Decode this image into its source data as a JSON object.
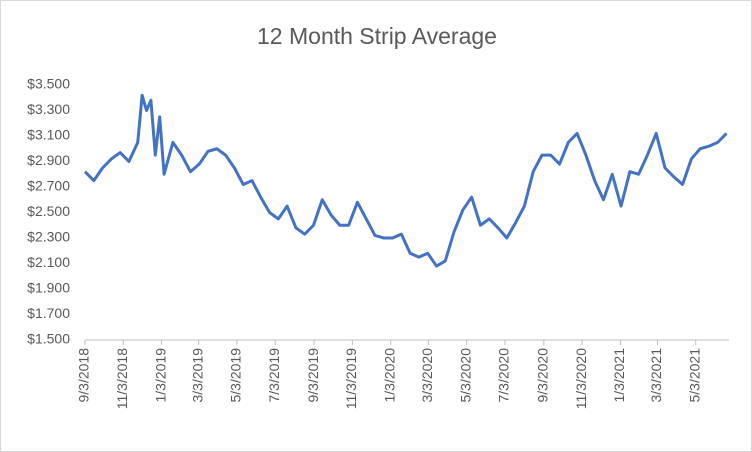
{
  "chart_data": {
    "type": "line",
    "title": "12 Month Strip Average",
    "x": [
      "9/3/2018",
      "9/17/2018",
      "10/1/2018",
      "10/15/2018",
      "10/29/2018",
      "11/12/2018",
      "11/26/2018",
      "12/3/2018",
      "12/10/2018",
      "12/17/2018",
      "12/24/2018",
      "12/31/2018",
      "1/7/2019",
      "1/21/2019",
      "2/4/2019",
      "2/18/2019",
      "3/4/2019",
      "3/18/2019",
      "4/1/2019",
      "4/15/2019",
      "4/29/2019",
      "5/13/2019",
      "5/27/2019",
      "6/10/2019",
      "6/24/2019",
      "7/8/2019",
      "7/22/2019",
      "8/5/2019",
      "8/19/2019",
      "9/2/2019",
      "9/16/2019",
      "9/30/2019",
      "10/14/2019",
      "10/28/2019",
      "11/11/2019",
      "11/25/2019",
      "12/9/2019",
      "12/23/2019",
      "1/6/2020",
      "1/20/2020",
      "2/3/2020",
      "2/17/2020",
      "3/2/2020",
      "3/16/2020",
      "3/30/2020",
      "4/13/2020",
      "4/27/2020",
      "5/11/2020",
      "5/25/2020",
      "6/8/2020",
      "6/22/2020",
      "7/6/2020",
      "7/20/2020",
      "8/3/2020",
      "8/17/2020",
      "8/31/2020",
      "9/14/2020",
      "9/28/2020",
      "10/12/2020",
      "10/26/2020",
      "11/9/2020",
      "11/23/2020",
      "12/7/2020",
      "12/21/2020",
      "1/4/2021",
      "1/18/2021",
      "2/1/2021",
      "2/15/2021",
      "3/1/2021",
      "3/15/2021",
      "3/29/2021",
      "4/12/2021",
      "4/26/2021",
      "5/10/2021",
      "5/24/2021",
      "6/7/2021",
      "6/21/2021"
    ],
    "series": [
      {
        "name": "12 Month Strip Average",
        "color": "#4472c4",
        "values": [
          2.82,
          2.75,
          2.85,
          2.92,
          2.97,
          2.9,
          3.05,
          3.42,
          3.3,
          3.38,
          2.95,
          3.25,
          2.8,
          3.05,
          2.95,
          2.82,
          2.88,
          2.98,
          3.0,
          2.95,
          2.85,
          2.72,
          2.75,
          2.62,
          2.5,
          2.45,
          2.55,
          2.38,
          2.33,
          2.4,
          2.6,
          2.48,
          2.4,
          2.4,
          2.58,
          2.45,
          2.32,
          2.3,
          2.3,
          2.33,
          2.18,
          2.15,
          2.18,
          2.08,
          2.12,
          2.35,
          2.52,
          2.62,
          2.4,
          2.45,
          2.38,
          2.3,
          2.42,
          2.55,
          2.82,
          2.95,
          2.95,
          2.88,
          3.05,
          3.12,
          2.95,
          2.75,
          2.6,
          2.8,
          2.55,
          2.82,
          2.8,
          2.95,
          3.12,
          2.85,
          2.78,
          2.72,
          2.92,
          3.0,
          3.02,
          3.05,
          3.12
        ]
      }
    ],
    "xlim": [
      "9/3/2018",
      "6/25/2021"
    ],
    "xticks": [
      "9/3/2018",
      "11/3/2018",
      "1/3/2019",
      "3/3/2019",
      "5/3/2019",
      "7/3/2019",
      "9/3/2019",
      "11/3/2019",
      "1/3/2020",
      "3/3/2020",
      "5/3/2020",
      "7/3/2020",
      "9/3/2020",
      "11/3/2020",
      "1/3/2021",
      "3/3/2021",
      "5/3/2021"
    ],
    "ylim": [
      1.5,
      3.5
    ],
    "yticks": [
      {
        "value": 1.5,
        "label": "$1.500"
      },
      {
        "value": 1.7,
        "label": "$1.700"
      },
      {
        "value": 1.9,
        "label": "$1.900"
      },
      {
        "value": 2.1,
        "label": "$2.100"
      },
      {
        "value": 2.3,
        "label": "$2.300"
      },
      {
        "value": 2.5,
        "label": "$2.500"
      },
      {
        "value": 2.7,
        "label": "$2.700"
      },
      {
        "value": 2.9,
        "label": "$2.900"
      },
      {
        "value": 3.1,
        "label": "$3.100"
      },
      {
        "value": 3.3,
        "label": "$3.300"
      },
      {
        "value": 3.5,
        "label": "$3.500"
      }
    ],
    "grid": false
  }
}
